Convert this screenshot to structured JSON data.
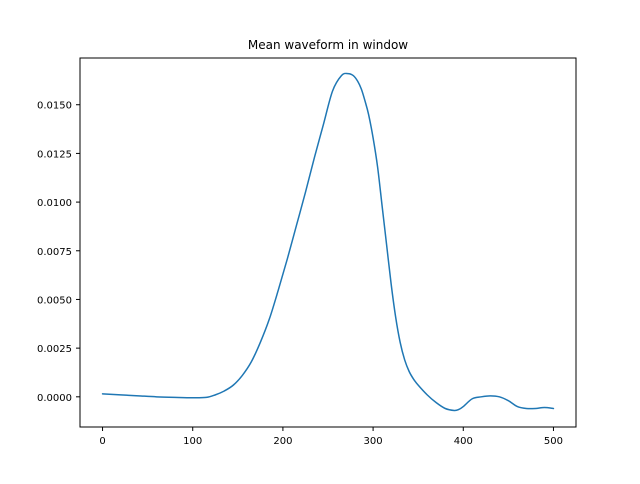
{
  "chart_data": {
    "type": "line",
    "title": "Mean waveform in window",
    "xlabel": "",
    "ylabel": "",
    "xlim": [
      -25,
      525
    ],
    "ylim": [
      -0.00155,
      0.0174
    ],
    "xticks": [
      0,
      100,
      200,
      300,
      400,
      500
    ],
    "yticks": [
      0.0,
      0.0025,
      0.005,
      0.0075,
      0.01,
      0.0125,
      0.015
    ],
    "xtick_labels": [
      "0",
      "100",
      "200",
      "300",
      "400",
      "500"
    ],
    "ytick_labels": [
      "0.0000",
      "0.0025",
      "0.0050",
      "0.0075",
      "0.0100",
      "0.0125",
      "0.0150"
    ],
    "grid": false,
    "legend": null,
    "series": [
      {
        "color": "#1f77b4",
        "x": [
          0,
          20,
          40,
          60,
          80,
          100,
          115,
          125,
          135,
          145,
          155,
          165,
          175,
          185,
          195,
          205,
          215,
          225,
          235,
          245,
          255,
          265,
          272,
          278,
          283,
          287,
          291,
          295,
          300,
          305,
          310,
          315,
          320,
          325,
          330,
          335,
          340,
          345,
          350,
          360,
          370,
          380,
          390,
          395,
          400,
          410,
          420,
          430,
          440,
          450,
          460,
          470,
          480,
          490,
          500
        ],
        "y": [
          0.00015,
          0.0001,
          5e-05,
          0.0,
          -3e-05,
          -5e-05,
          -3e-05,
          0.0001,
          0.0003,
          0.0006,
          0.0011,
          0.0018,
          0.0028,
          0.004,
          0.0055,
          0.0071,
          0.0088,
          0.0105,
          0.0123,
          0.014,
          0.0157,
          0.0165,
          0.0166,
          0.0165,
          0.0162,
          0.0158,
          0.0152,
          0.0145,
          0.0133,
          0.0118,
          0.0098,
          0.0078,
          0.0058,
          0.0041,
          0.0028,
          0.0019,
          0.0013,
          0.0009,
          0.0006,
          0.0001,
          -0.0003,
          -0.0006,
          -0.0007,
          -0.00065,
          -0.0005,
          -0.0001,
          0.0,
          5e-05,
          0.0,
          -0.0002,
          -0.0005,
          -0.0006,
          -0.0006,
          -0.00055,
          -0.0006
        ]
      }
    ]
  }
}
